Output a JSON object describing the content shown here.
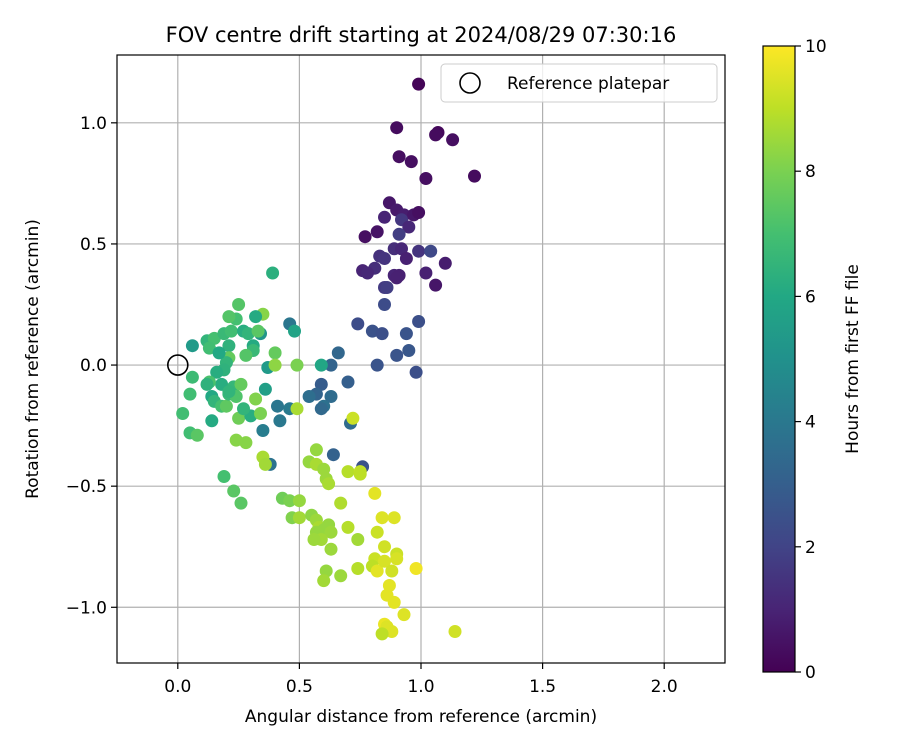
{
  "chart_data": {
    "type": "scatter",
    "title": "FOV centre drift starting at 2024/08/29 07:30:16",
    "xlabel": "Angular distance from reference (arcmin)",
    "ylabel": "Rotation from reference (arcmin)",
    "xlim": [
      -0.25,
      2.25
    ],
    "ylim": [
      -1.23,
      1.28
    ],
    "xticks": [
      0.0,
      0.5,
      1.0,
      1.5,
      2.0
    ],
    "xtick_labels": [
      "0.0",
      "0.5",
      "1.0",
      "1.5",
      "2.0"
    ],
    "yticks": [
      1.0,
      0.5,
      0.0,
      -0.5,
      -1.0
    ],
    "ytick_labels": [
      "1.0",
      "0.5",
      "0.0",
      "−0.5",
      "−1.0"
    ],
    "grid": true,
    "legend": {
      "label": "Reference platepar",
      "position": "top-right"
    },
    "reference_point": {
      "x": 0.0,
      "y": 0.0
    },
    "colorbar": {
      "label": "Hours from first FF file",
      "range": [
        0,
        10
      ],
      "ticks": [
        0,
        2,
        4,
        6,
        8,
        10
      ],
      "tick_labels": [
        "0",
        "2",
        "4",
        "6",
        "8",
        "10"
      ],
      "colormap": "viridis"
    },
    "points": [
      [
        0.99,
        1.16,
        0.1
      ],
      [
        0.9,
        0.98,
        0.3
      ],
      [
        1.07,
        0.96,
        0.2
      ],
      [
        1.06,
        0.95,
        0.3
      ],
      [
        1.13,
        0.93,
        0.4
      ],
      [
        0.91,
        0.86,
        0.4
      ],
      [
        0.96,
        0.84,
        0.4
      ],
      [
        1.02,
        0.77,
        0.4
      ],
      [
        1.22,
        0.78,
        0.3
      ],
      [
        0.87,
        0.67,
        0.6
      ],
      [
        0.9,
        0.64,
        0.7
      ],
      [
        0.93,
        0.62,
        0.8
      ],
      [
        0.97,
        0.62,
        0.6
      ],
      [
        0.99,
        0.63,
        0.4
      ],
      [
        0.85,
        0.61,
        1.0
      ],
      [
        0.92,
        0.6,
        1.6
      ],
      [
        0.95,
        0.57,
        1.1
      ],
      [
        0.91,
        0.54,
        1.8
      ],
      [
        0.82,
        0.55,
        0.5
      ],
      [
        0.77,
        0.53,
        0.4
      ],
      [
        0.89,
        0.48,
        1.3
      ],
      [
        0.92,
        0.48,
        1.1
      ],
      [
        0.99,
        0.47,
        1.5
      ],
      [
        1.04,
        0.47,
        2.2
      ],
      [
        0.83,
        0.45,
        1.4
      ],
      [
        0.85,
        0.44,
        1.5
      ],
      [
        0.94,
        0.44,
        0.9
      ],
      [
        1.1,
        0.42,
        0.8
      ],
      [
        0.81,
        0.4,
        1.3
      ],
      [
        0.76,
        0.39,
        1.0
      ],
      [
        0.78,
        0.38,
        1.1
      ],
      [
        0.89,
        0.37,
        1.0
      ],
      [
        0.91,
        0.37,
        0.9
      ],
      [
        0.9,
        0.36,
        0.9
      ],
      [
        1.02,
        0.38,
        0.9
      ],
      [
        1.06,
        0.33,
        0.6
      ],
      [
        0.85,
        0.32,
        1.7
      ],
      [
        0.86,
        0.32,
        1.8
      ],
      [
        0.85,
        0.25,
        2.3
      ],
      [
        0.99,
        0.18,
        2.4
      ],
      [
        0.74,
        0.17,
        2.3
      ],
      [
        0.8,
        0.14,
        2.5
      ],
      [
        0.84,
        0.13,
        2.4
      ],
      [
        0.94,
        0.13,
        2.6
      ],
      [
        0.95,
        0.06,
        2.7
      ],
      [
        0.9,
        0.04,
        2.6
      ],
      [
        0.82,
        0.0,
        2.6
      ],
      [
        0.98,
        -0.03,
        2.4
      ],
      [
        0.66,
        0.05,
        3.3
      ],
      [
        0.63,
        0.0,
        3.2
      ],
      [
        0.59,
        -0.08,
        2.9
      ],
      [
        0.7,
        -0.07,
        3.0
      ],
      [
        0.57,
        -0.12,
        3.2
      ],
      [
        0.54,
        -0.13,
        3.6
      ],
      [
        0.63,
        -0.13,
        3.5
      ],
      [
        0.6,
        -0.17,
        3.7
      ],
      [
        0.59,
        -0.18,
        3.4
      ],
      [
        0.41,
        -0.17,
        3.9
      ],
      [
        0.46,
        -0.18,
        4.1
      ],
      [
        0.42,
        -0.23,
        4.0
      ],
      [
        0.71,
        -0.24,
        3.5
      ],
      [
        0.64,
        -0.37,
        3.1
      ],
      [
        0.76,
        -0.42,
        2.5
      ],
      [
        0.35,
        -0.27,
        4.2
      ],
      [
        0.38,
        -0.41,
        3.8
      ],
      [
        0.46,
        0.17,
        3.9
      ],
      [
        0.48,
        0.14,
        5.8
      ],
      [
        0.39,
        0.38,
        6.3
      ],
      [
        0.59,
        0.0,
        5.9
      ],
      [
        0.34,
        0.13,
        5.2
      ],
      [
        0.37,
        -0.01,
        5.4
      ],
      [
        0.36,
        -0.1,
        5.6
      ],
      [
        0.35,
        0.21,
        8.2
      ],
      [
        0.06,
        0.08,
        5.4
      ],
      [
        0.06,
        -0.05,
        6.8
      ],
      [
        0.05,
        -0.12,
        6.9
      ],
      [
        0.02,
        -0.2,
        6.9
      ],
      [
        0.05,
        -0.28,
        6.9
      ],
      [
        0.08,
        -0.29,
        7.4
      ],
      [
        0.12,
        0.1,
        6.5
      ],
      [
        0.15,
        0.11,
        7.0
      ],
      [
        0.13,
        0.07,
        6.9
      ],
      [
        0.19,
        0.13,
        6.7
      ],
      [
        0.21,
        0.08,
        6.4
      ],
      [
        0.22,
        0.14,
        6.9
      ],
      [
        0.24,
        0.19,
        7.0
      ],
      [
        0.25,
        0.25,
        7.3
      ],
      [
        0.21,
        0.2,
        7.3
      ],
      [
        0.27,
        0.14,
        6.2
      ],
      [
        0.29,
        0.13,
        6.5
      ],
      [
        0.32,
        0.2,
        6.1
      ],
      [
        0.33,
        0.14,
        7.4
      ],
      [
        0.31,
        0.08,
        6.1
      ],
      [
        0.31,
        0.06,
        6.7
      ],
      [
        0.28,
        0.04,
        7.3
      ],
      [
        0.21,
        0.03,
        7.6
      ],
      [
        0.2,
        0.01,
        6.5
      ],
      [
        0.19,
        -0.02,
        6.4
      ],
      [
        0.17,
        0.05,
        6.0
      ],
      [
        0.16,
        -0.03,
        6.2
      ],
      [
        0.18,
        -0.08,
        6.2
      ],
      [
        0.13,
        -0.07,
        7.1
      ],
      [
        0.12,
        -0.08,
        6.4
      ],
      [
        0.14,
        -0.13,
        6.0
      ],
      [
        0.15,
        -0.15,
        6.5
      ],
      [
        0.18,
        -0.17,
        7.0
      ],
      [
        0.2,
        -0.17,
        7.5
      ],
      [
        0.21,
        -0.12,
        6.7
      ],
      [
        0.23,
        -0.09,
        6.6
      ],
      [
        0.26,
        -0.08,
        7.6
      ],
      [
        0.24,
        -0.13,
        7.2
      ],
      [
        0.21,
        -0.11,
        6.5
      ],
      [
        0.14,
        -0.23,
        6.1
      ],
      [
        0.25,
        -0.22,
        7.8
      ],
      [
        0.3,
        -0.21,
        6.2
      ],
      [
        0.32,
        -0.14,
        8.1
      ],
      [
        0.34,
        -0.2,
        8.0
      ],
      [
        0.28,
        -0.32,
        8.2
      ],
      [
        0.24,
        -0.31,
        8.2
      ],
      [
        0.27,
        -0.18,
        6.5
      ],
      [
        0.19,
        -0.46,
        7.0
      ],
      [
        0.23,
        -0.52,
        7.4
      ],
      [
        0.26,
        -0.57,
        7.4
      ],
      [
        0.35,
        -0.38,
        8.7
      ],
      [
        0.36,
        -0.41,
        8.6
      ],
      [
        0.4,
        0.05,
        7.6
      ],
      [
        0.4,
        0.0,
        8.3
      ],
      [
        0.49,
        -0.18,
        8.7
      ],
      [
        0.49,
        0.0,
        8.0
      ],
      [
        0.54,
        -0.4,
        8.4
      ],
      [
        0.57,
        -0.35,
        8.4
      ],
      [
        0.57,
        -0.41,
        8.7
      ],
      [
        0.6,
        -0.43,
        8.5
      ],
      [
        0.61,
        -0.47,
        8.5
      ],
      [
        0.62,
        -0.49,
        8.7
      ],
      [
        0.43,
        -0.55,
        7.8
      ],
      [
        0.46,
        -0.56,
        8.0
      ],
      [
        0.47,
        -0.63,
        8.1
      ],
      [
        0.5,
        -0.56,
        8.4
      ],
      [
        0.5,
        -0.63,
        8.6
      ],
      [
        0.55,
        -0.62,
        8.3
      ],
      [
        0.57,
        -0.64,
        8.5
      ],
      [
        0.58,
        -0.67,
        8.7
      ],
      [
        0.57,
        -0.69,
        8.4
      ],
      [
        0.6,
        -0.68,
        8.4
      ],
      [
        0.62,
        -0.66,
        8.4
      ],
      [
        0.63,
        -0.69,
        8.5
      ],
      [
        0.59,
        -0.72,
        8.6
      ],
      [
        0.56,
        -0.72,
        8.5
      ],
      [
        0.63,
        -0.76,
        8.5
      ],
      [
        0.67,
        -0.57,
        8.8
      ],
      [
        0.7,
        -0.44,
        8.9
      ],
      [
        0.72,
        -0.22,
        9.2
      ],
      [
        0.75,
        -0.44,
        9.1
      ],
      [
        0.75,
        -0.45,
        9.0
      ],
      [
        0.7,
        -0.67,
        8.9
      ],
      [
        0.74,
        -0.72,
        8.6
      ],
      [
        0.74,
        -0.84,
        8.9
      ],
      [
        0.67,
        -0.87,
        8.5
      ],
      [
        0.61,
        -0.85,
        8.4
      ],
      [
        0.6,
        -0.89,
        8.6
      ],
      [
        0.81,
        -0.53,
        9.6
      ],
      [
        0.84,
        -0.63,
        9.5
      ],
      [
        0.89,
        -0.63,
        9.5
      ],
      [
        0.82,
        -0.69,
        9.2
      ],
      [
        0.85,
        -0.75,
        9.3
      ],
      [
        0.81,
        -0.8,
        9.2
      ],
      [
        0.8,
        -0.83,
        9.0
      ],
      [
        0.82,
        -0.85,
        9.6
      ],
      [
        0.85,
        -0.81,
        9.4
      ],
      [
        0.9,
        -0.78,
        9.2
      ],
      [
        0.9,
        -0.8,
        9.4
      ],
      [
        0.88,
        -0.85,
        9.3
      ],
      [
        0.98,
        -0.84,
        9.8
      ],
      [
        0.87,
        -0.91,
        9.6
      ],
      [
        0.86,
        -0.95,
        9.6
      ],
      [
        0.89,
        -0.98,
        9.6
      ],
      [
        0.93,
        -1.03,
        9.5
      ],
      [
        0.85,
        -1.07,
        9.7
      ],
      [
        0.86,
        -1.08,
        9.5
      ],
      [
        0.88,
        -1.1,
        9.5
      ],
      [
        0.84,
        -1.11,
        9.0
      ],
      [
        1.14,
        -1.1,
        9.3
      ]
    ]
  }
}
